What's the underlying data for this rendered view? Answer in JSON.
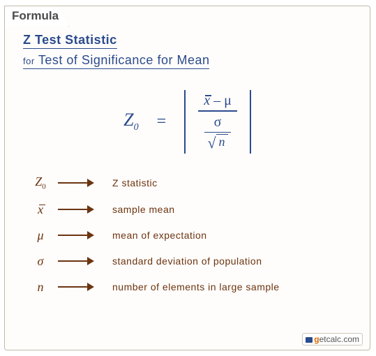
{
  "colors": {
    "card_bg": "#fffdfb",
    "card_border": "#c4b9a8",
    "title": "#2a4b8d",
    "formula": "#2a4b8d",
    "legend": "#6b3410"
  },
  "tab_label": "Formula",
  "title_line1": "Z Test Statistic",
  "title_for": "for",
  "title_line2": "Test of Significance for Mean",
  "formula": {
    "lhs_base": "Z",
    "lhs_sub": "0",
    "eq": "=",
    "numerator_x": "x",
    "numerator_minus": " – ",
    "numerator_mu": "μ",
    "denom_sigma": "σ",
    "denom_sqrt_arg": "n"
  },
  "legend": [
    {
      "symbol_html": "Z<sub>0</sub>",
      "desc": "Z statistic"
    },
    {
      "symbol_html": "x̄",
      "desc": "sample mean"
    },
    {
      "symbol_html": "μ",
      "desc": "mean of expectation"
    },
    {
      "symbol_html": "σ",
      "desc": "standard deviation of population"
    },
    {
      "symbol_html": "n",
      "desc": "number of elements in large sample"
    }
  ],
  "logo": {
    "brand_g": "g",
    "brand_rest": "etcalc",
    "brand_tld": ".com"
  }
}
